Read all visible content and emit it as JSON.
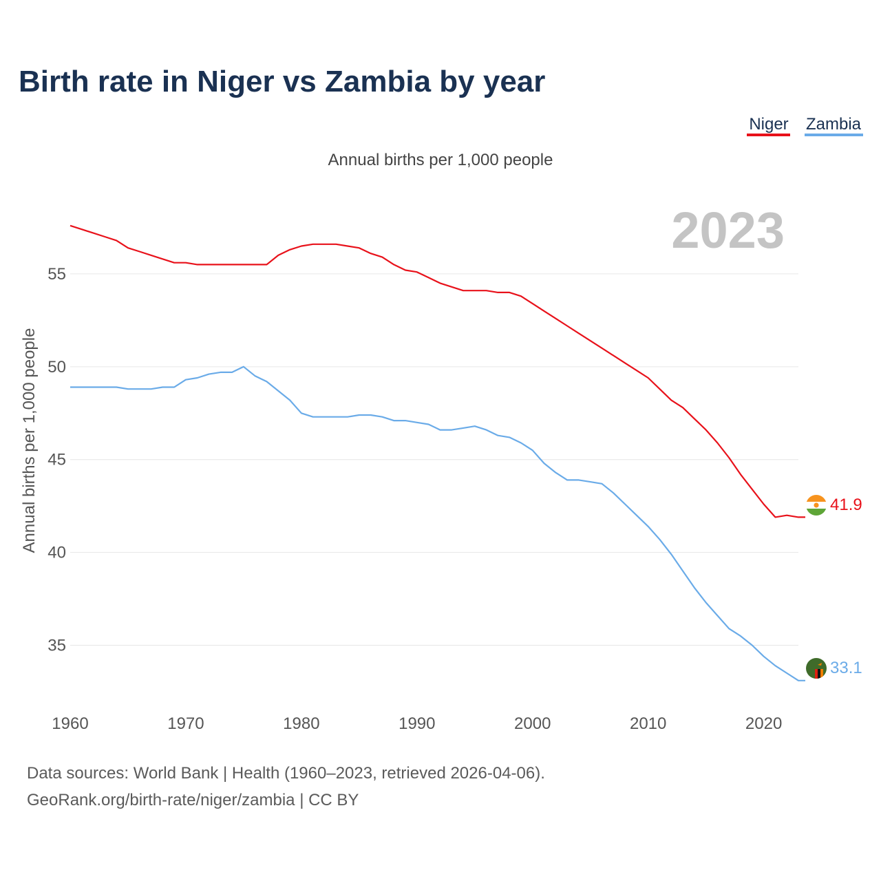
{
  "chart_data": {
    "type": "line",
    "title": "Birth rate in Niger vs Zambia by year",
    "subtitle": "Annual births per 1,000 people",
    "ylabel": "Annual births per 1,000 people",
    "xlabel": "",
    "highlight_year": "2023",
    "xlim": [
      1960,
      2023
    ],
    "ylim": [
      32.5,
      59
    ],
    "x_ticks": [
      1960,
      1970,
      1980,
      1990,
      2000,
      2010,
      2020
    ],
    "y_ticks": [
      35,
      40,
      45,
      50,
      55
    ],
    "grid": true,
    "legend_position": "top-right",
    "x": [
      1960,
      1961,
      1962,
      1963,
      1964,
      1965,
      1966,
      1967,
      1968,
      1969,
      1970,
      1971,
      1972,
      1973,
      1974,
      1975,
      1976,
      1977,
      1978,
      1979,
      1980,
      1981,
      1982,
      1983,
      1984,
      1985,
      1986,
      1987,
      1988,
      1989,
      1990,
      1991,
      1992,
      1993,
      1994,
      1995,
      1996,
      1997,
      1998,
      1999,
      2000,
      2001,
      2002,
      2003,
      2004,
      2005,
      2006,
      2007,
      2008,
      2009,
      2010,
      2011,
      2012,
      2013,
      2014,
      2015,
      2016,
      2017,
      2018,
      2019,
      2020,
      2021,
      2022,
      2023
    ],
    "series": [
      {
        "name": "Niger",
        "color": "#e8111a",
        "end_label": "41.9",
        "flag_icon": "niger-flag-icon",
        "values": [
          57.6,
          57.4,
          57.2,
          57.0,
          56.8,
          56.4,
          56.2,
          56.0,
          55.8,
          55.6,
          55.6,
          55.5,
          55.5,
          55.5,
          55.5,
          55.5,
          55.5,
          55.5,
          56.0,
          56.3,
          56.5,
          56.6,
          56.6,
          56.6,
          56.5,
          56.4,
          56.1,
          55.9,
          55.5,
          55.2,
          55.1,
          54.8,
          54.5,
          54.3,
          54.1,
          54.1,
          54.1,
          54.0,
          54.0,
          53.8,
          53.4,
          53.0,
          52.6,
          52.2,
          51.8,
          51.4,
          51.0,
          50.6,
          50.2,
          49.8,
          49.4,
          48.8,
          48.2,
          47.8,
          47.2,
          46.6,
          45.9,
          45.1,
          44.2,
          43.4,
          42.6,
          41.9,
          42.0,
          41.9
        ]
      },
      {
        "name": "Zambia",
        "color": "#6aabe8",
        "end_label": "33.1",
        "flag_icon": "zambia-flag-icon",
        "values": [
          48.9,
          48.9,
          48.9,
          48.9,
          48.9,
          48.8,
          48.8,
          48.8,
          48.9,
          48.9,
          49.3,
          49.4,
          49.6,
          49.7,
          49.7,
          50.0,
          49.5,
          49.2,
          48.7,
          48.2,
          47.5,
          47.3,
          47.3,
          47.3,
          47.3,
          47.4,
          47.4,
          47.3,
          47.1,
          47.1,
          47.0,
          46.9,
          46.6,
          46.6,
          46.7,
          46.8,
          46.6,
          46.3,
          46.2,
          45.9,
          45.5,
          44.8,
          44.3,
          43.9,
          43.9,
          43.8,
          43.7,
          43.2,
          42.6,
          42.0,
          41.4,
          40.7,
          39.9,
          39.0,
          38.1,
          37.3,
          36.6,
          35.9,
          35.5,
          35.0,
          34.4,
          33.9,
          33.5,
          33.1
        ]
      }
    ]
  },
  "source": {
    "line1": "Data sources: World Bank | Health (1960–2023, retrieved 2026-04-06).",
    "line2": "GeoRank.org/birth-rate/niger/zambia | CC BY"
  }
}
